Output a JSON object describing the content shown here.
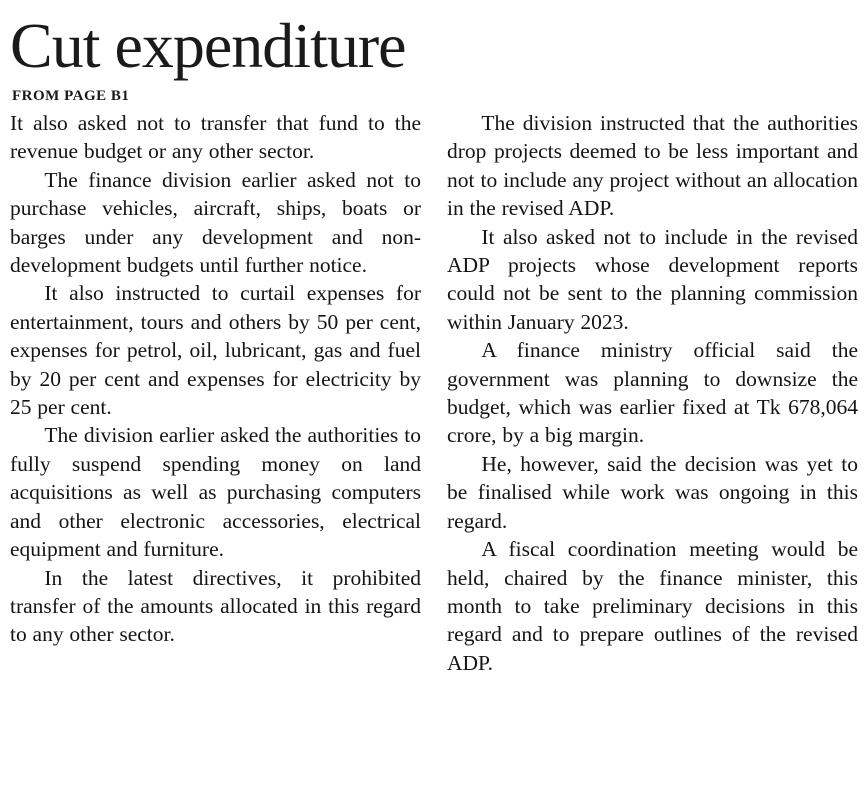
{
  "article": {
    "headline": "Cut expenditure",
    "kicker": "FROM PAGE B1",
    "left_column": [
      "It also asked not to transfer that fund to the revenue budget or any other sector.",
      "The finance division earlier asked not to purchase vehicles, aircraft, ships, boats or barges under any development and non-development budgets until further notice.",
      "It also instructed to curtail expenses for entertainment, tours and others by 50 per cent, expenses for petrol, oil, lubricant, gas and fuel by 20 per cent and expenses for electricity by 25 per cent.",
      "The division earlier asked the authorities to fully suspend spending money on land acquisitions as well as purchasing computers and other electronic accessories, electrical equipment and furniture.",
      "In the latest directives, it prohibited transfer of the amounts allocated in this regard to any other sector."
    ],
    "right_column": [
      "The division instructed that the authorities drop projects deemed to be less important and not to include any project without an allocation in the revised ADP.",
      "It also asked not to include in the revised ADP projects whose development reports could not be sent to the planning commission within January 2023.",
      "A finance ministry official said the government was planning to downsize the budget, which was earlier fixed at Tk 678,064 crore, by a big margin.",
      "He, however, said the decision was yet to be finalised while work was ongoing in this regard.",
      "A fiscal coordination meeting would be held, chaired by the finance minister, this month to take preliminary decisions in this regard and to prepare outlines of the revised ADP."
    ]
  }
}
